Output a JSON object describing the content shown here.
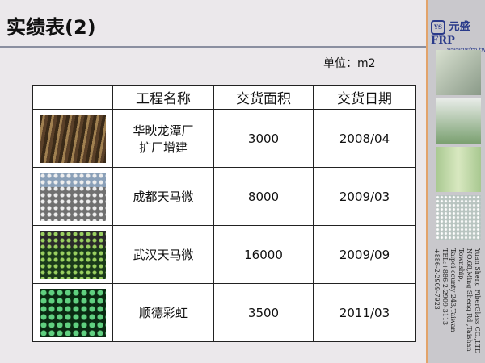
{
  "title": "实绩表(2)",
  "unit": "单位：m2",
  "table": {
    "headers": [
      "",
      "工程名称",
      "交货面积",
      "交货日期"
    ],
    "rows": [
      {
        "name": "华映龙潭厂\n扩厂增建",
        "name1": "华映龙潭厂",
        "name2": "扩厂增建",
        "area": "3000",
        "date": "2008/04"
      },
      {
        "name": "成都天马微",
        "area": "8000",
        "date": "2009/03"
      },
      {
        "name": "武汉天马微",
        "area": "16000",
        "date": "2009/09"
      },
      {
        "name": "顺德彩虹",
        "area": "3500",
        "date": "2011/03"
      }
    ]
  },
  "sidebar": {
    "logo_text": "元盛FRP",
    "logo_mark": "YS",
    "website": "www.ysfrp.tw",
    "address": [
      "Yuan Sheng FiberGlass CO.,LTD",
      "NO.68,Ming Sheng Rd.,Taishan Township,",
      "Taipei county 243,Taiwan",
      "TEL:+886-2-2909-3113",
      "+886-2-2909-7923"
    ]
  }
}
